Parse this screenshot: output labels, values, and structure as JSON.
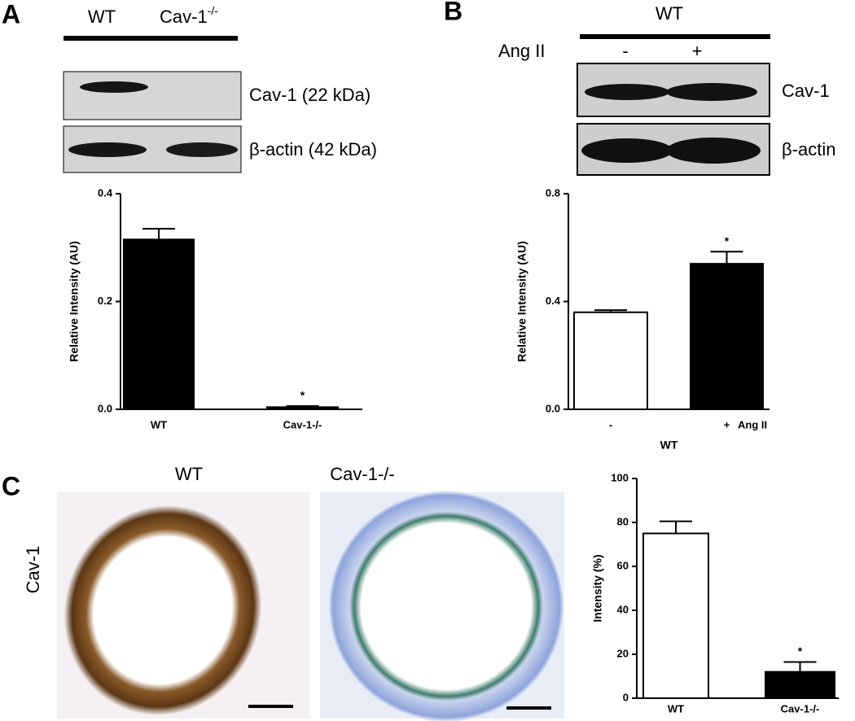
{
  "blot_a": {
    "letter": "A",
    "lanes": [
      "WT",
      "Cav-1"
    ],
    "lane_sup": "-/-",
    "bands": [
      "Cav-1 (22 kDa)",
      "β-actin (42 kDa)"
    ]
  },
  "blot_b": {
    "letter": "B",
    "group": "WT",
    "treatment": "Ang II",
    "lanes": [
      "-",
      "+"
    ],
    "bands": [
      "Cav-1",
      "β-actin"
    ]
  },
  "histology": {
    "letter": "C",
    "columns": [
      "WT",
      "Cav-1-/-"
    ],
    "row": "Cav-1"
  },
  "chart_data": [
    {
      "type": "bar",
      "ylabel": "Relative Intensity (AU)",
      "categories": [
        "WT",
        "Cav-1-/-"
      ],
      "values": [
        0.315,
        0.004
      ],
      "errors": [
        0.02,
        0.002
      ],
      "colors": [
        "#000000",
        "#000000"
      ],
      "significance": [
        null,
        "*"
      ],
      "ylim": [
        0,
        0.4
      ],
      "yticks": [
        {
          "value": 0,
          "label": "0.0"
        },
        {
          "value": 0.2,
          "label": "0.2"
        },
        {
          "value": 0.4,
          "label": "0.4"
        }
      ]
    },
    {
      "type": "bar",
      "ylabel": "Relative Intensity (AU)",
      "xlabel": "WT",
      "treatment_label": "Ang II",
      "categories": [
        "-",
        "+"
      ],
      "values": [
        0.36,
        0.54
      ],
      "errors": [
        0.008,
        0.045
      ],
      "colors": [
        "#ffffff",
        "#000000"
      ],
      "significance": [
        null,
        "*"
      ],
      "ylim": [
        0,
        0.8
      ],
      "yticks": [
        {
          "value": 0,
          "label": "0.0"
        },
        {
          "value": 0.4,
          "label": "0.4"
        },
        {
          "value": 0.8,
          "label": "0.8"
        }
      ]
    },
    {
      "type": "bar",
      "ylabel": "Intensity (%)",
      "categories": [
        "WT",
        "Cav-1-/-"
      ],
      "values": [
        75,
        12
      ],
      "errors": [
        5.5,
        4.5
      ],
      "colors": [
        "#ffffff",
        "#000000"
      ],
      "significance": [
        null,
        "*"
      ],
      "ylim": [
        0,
        100
      ],
      "yticks": [
        0,
        20,
        40,
        60,
        80,
        100
      ]
    }
  ]
}
